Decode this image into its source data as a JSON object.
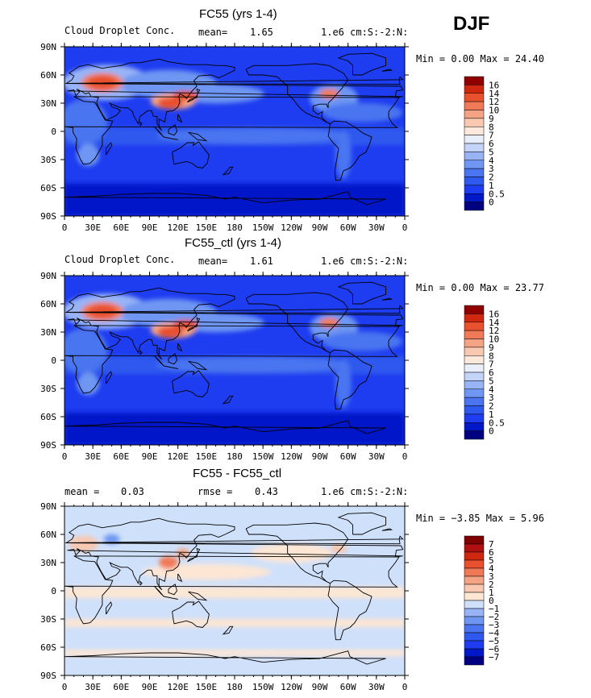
{
  "season": "DJF",
  "panels": [
    {
      "title": "FC55 (yrs 1-4)",
      "left_label": "Cloud Droplet Conc.",
      "stat1_label": "mean=",
      "stat1_value": "1.65",
      "stat2_label": "",
      "stat2_value": "",
      "units": "1.e6 cm:S:-2:N:",
      "minmax": "Min =   0.00 Max =  24.40"
    },
    {
      "title": "FC55_ctl (yrs 1-4)",
      "left_label": "Cloud Droplet Conc.",
      "stat1_label": "mean=",
      "stat1_value": "1.61",
      "stat2_label": "",
      "stat2_value": "",
      "units": "1.e6 cm:S:-2:N:",
      "minmax": "Min =   0.00 Max =  23.77"
    },
    {
      "title": "FC55 - FC55_ctl",
      "left_label": "",
      "stat1_label": "mean =",
      "stat1_value": "0.03",
      "stat2_label": "rmse =",
      "stat2_value": "0.43",
      "units": "1.e6 cm:S:-2:N:",
      "minmax": "Min = −3.85 Max =   5.96"
    }
  ],
  "chart_data": [
    {
      "type": "heatmap",
      "title": "FC55 (yrs 1-4)",
      "x_ticks": [
        "0",
        "30E",
        "60E",
        "90E",
        "120E",
        "150E",
        "180",
        "150W",
        "120W",
        "90W",
        "60W",
        "30W",
        "0"
      ],
      "y_ticks": [
        "90S",
        "60S",
        "30S",
        "0",
        "30N",
        "60N",
        "90N"
      ],
      "colorbar_levels": [
        "0",
        "0.5",
        "1",
        "2",
        "3",
        "4",
        "5",
        "6",
        "7",
        "8",
        "9",
        "10",
        "12",
        "14",
        "16"
      ],
      "colorbar_colors": [
        "#000080",
        "#0018c8",
        "#1e3cf0",
        "#2e58ee",
        "#4a74f0",
        "#6e96f2",
        "#98b4f6",
        "#c4d4f8",
        "#e8eefa",
        "#fde8dc",
        "#f8c8b0",
        "#f4a484",
        "#f07a58",
        "#e8502e",
        "#d02810",
        "#900000"
      ],
      "min": 0.0,
      "max": 24.4,
      "mean": 1.65
    },
    {
      "type": "heatmap",
      "title": "FC55_ctl (yrs 1-4)",
      "x_ticks": [
        "0",
        "30E",
        "60E",
        "90E",
        "120E",
        "150E",
        "180",
        "150W",
        "120W",
        "90W",
        "60W",
        "30W",
        "0"
      ],
      "y_ticks": [
        "90S",
        "60S",
        "30S",
        "0",
        "30N",
        "60N",
        "90N"
      ],
      "colorbar_levels": [
        "0",
        "0.5",
        "1",
        "2",
        "3",
        "4",
        "5",
        "6",
        "7",
        "8",
        "9",
        "10",
        "12",
        "14",
        "16"
      ],
      "colorbar_colors": [
        "#000080",
        "#0018c8",
        "#1e3cf0",
        "#2e58ee",
        "#4a74f0",
        "#6e96f2",
        "#98b4f6",
        "#c4d4f8",
        "#e8eefa",
        "#fde8dc",
        "#f8c8b0",
        "#f4a484",
        "#f07a58",
        "#e8502e",
        "#d02810",
        "#900000"
      ],
      "min": 0.0,
      "max": 23.77,
      "mean": 1.61
    },
    {
      "type": "heatmap",
      "title": "FC55 - FC55_ctl",
      "x_ticks": [
        "0",
        "30E",
        "60E",
        "90E",
        "120E",
        "150E",
        "180",
        "150W",
        "120W",
        "90W",
        "60W",
        "30W",
        "0"
      ],
      "y_ticks": [
        "90S",
        "60S",
        "30S",
        "0",
        "30N",
        "60N",
        "90N"
      ],
      "colorbar_levels": [
        "−7",
        "−6",
        "−5",
        "−4",
        "−3",
        "−2",
        "−1",
        "0",
        "1",
        "2",
        "3",
        "4",
        "5",
        "6",
        "7"
      ],
      "colorbar_colors": [
        "#000080",
        "#0018c8",
        "#1e3cf0",
        "#2e58ee",
        "#4a74f0",
        "#6e96f2",
        "#98b4f6",
        "#cfe0fa",
        "#fde6d4",
        "#f8c8b0",
        "#f4a484",
        "#f07a58",
        "#e8502e",
        "#d02810",
        "#b01010",
        "#800000"
      ],
      "min": -3.85,
      "max": 5.96,
      "mean": 0.03,
      "rmse": 0.43
    }
  ]
}
